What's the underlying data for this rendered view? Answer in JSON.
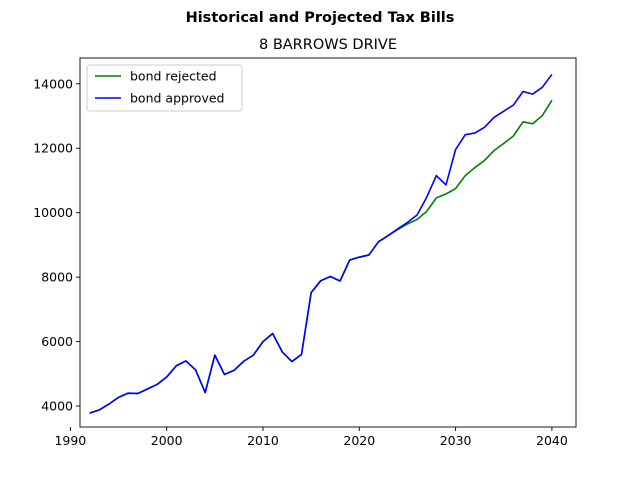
{
  "chart_data": {
    "type": "line",
    "suptitle": "Historical and Projected Tax Bills",
    "title": "8 BARROWS DRIVE",
    "xlabel": "",
    "ylabel": "",
    "xlim": [
      1991,
      2042.5
    ],
    "ylim": [
      3350,
      14800
    ],
    "xticks": [
      1990,
      2000,
      2010,
      2020,
      2030,
      2040
    ],
    "yticks": [
      4000,
      6000,
      8000,
      10000,
      12000,
      14000
    ],
    "grid": false,
    "legend_position": "top-left",
    "series": [
      {
        "name": "bond rejected",
        "color": "#008000",
        "x": [
          1992,
          1993,
          1994,
          1995,
          1996,
          1997,
          1998,
          1999,
          2000,
          2001,
          2002,
          2003,
          2004,
          2005,
          2006,
          2007,
          2008,
          2009,
          2010,
          2011,
          2012,
          2013,
          2014,
          2015,
          2016,
          2017,
          2018,
          2019,
          2020,
          2021,
          2022,
          2023,
          2024,
          2025,
          2026,
          2027,
          2028,
          2029,
          2030,
          2031,
          2032,
          2033,
          2034,
          2035,
          2036,
          2037,
          2038,
          2039,
          2040
        ],
        "values": [
          3780,
          3880,
          4060,
          4270,
          4400,
          4390,
          4530,
          4670,
          4900,
          5250,
          5400,
          5120,
          4420,
          5580,
          4980,
          5110,
          5390,
          5580,
          6000,
          6250,
          5680,
          5380,
          5600,
          7520,
          7890,
          8020,
          7880,
          8530,
          8620,
          8690,
          9100,
          9290,
          9480,
          9650,
          9790,
          10040,
          10460,
          10580,
          10750,
          11150,
          11400,
          11620,
          11930,
          12150,
          12380,
          12820,
          12760,
          13010,
          13490
        ]
      },
      {
        "name": "bond approved",
        "color": "#0000ff",
        "x": [
          1992,
          1993,
          1994,
          1995,
          1996,
          1997,
          1998,
          1999,
          2000,
          2001,
          2002,
          2003,
          2004,
          2005,
          2006,
          2007,
          2008,
          2009,
          2010,
          2011,
          2012,
          2013,
          2014,
          2015,
          2016,
          2017,
          2018,
          2019,
          2020,
          2021,
          2022,
          2023,
          2024,
          2025,
          2026,
          2027,
          2028,
          2029,
          2030,
          2031,
          2032,
          2033,
          2034,
          2035,
          2036,
          2037,
          2038,
          2039,
          2040
        ],
        "values": [
          3780,
          3880,
          4060,
          4270,
          4400,
          4390,
          4530,
          4670,
          4900,
          5250,
          5400,
          5120,
          4420,
          5580,
          4980,
          5110,
          5390,
          5580,
          6000,
          6250,
          5680,
          5380,
          5600,
          7520,
          7890,
          8020,
          7880,
          8530,
          8620,
          8690,
          9100,
          9290,
          9500,
          9700,
          9930,
          10480,
          11150,
          10860,
          11960,
          12420,
          12470,
          12650,
          12960,
          13150,
          13340,
          13760,
          13680,
          13890,
          14290
        ]
      }
    ]
  }
}
